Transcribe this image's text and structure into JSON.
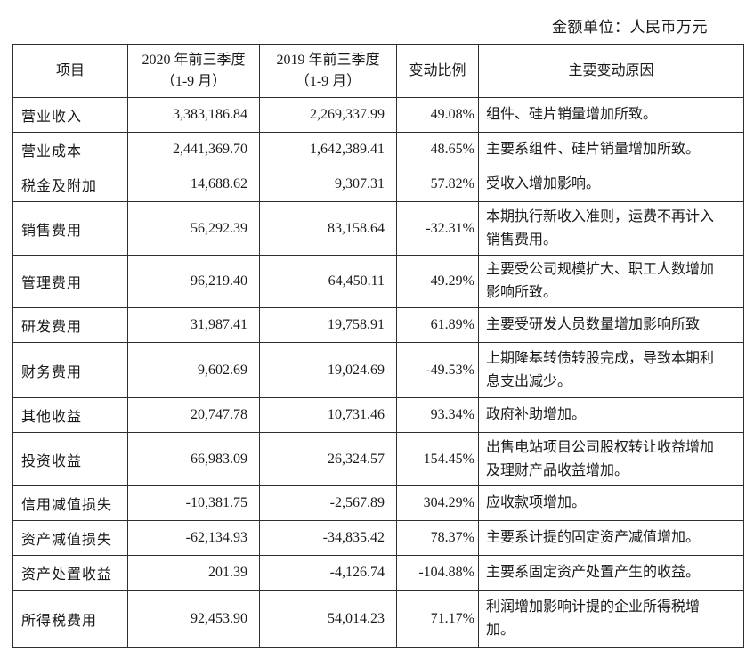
{
  "meta": {
    "unit_label": "金额单位：人民币万元"
  },
  "table": {
    "columns": [
      {
        "label": "项目"
      },
      {
        "line1": "2020 年前三季度",
        "line2": "（1-9 月）"
      },
      {
        "line1": "2019 年前三季度",
        "line2": "（1-9 月）"
      },
      {
        "label": "变动比例"
      },
      {
        "label": "主要变动原因"
      }
    ],
    "rows": [
      {
        "item": "营业收入",
        "v2020": "3,383,186.84",
        "v2019": "2,269,337.99",
        "change": "49.08%",
        "reason": "组件、硅片销量增加所致。"
      },
      {
        "item": "营业成本",
        "v2020": "2,441,369.70",
        "v2019": "1,642,389.41",
        "change": "48.65%",
        "reason": "主要系组件、硅片销量增加所致。"
      },
      {
        "item": "税金及附加",
        "v2020": "14,688.62",
        "v2019": "9,307.31",
        "change": "57.82%",
        "reason": "受收入增加影响。"
      },
      {
        "item": "销售费用",
        "v2020": "56,292.39",
        "v2019": "83,158.64",
        "change": "-32.31%",
        "reason": "本期执行新收入准则，运费不再计入销售费用。"
      },
      {
        "item": "管理费用",
        "v2020": "96,219.40",
        "v2019": "64,450.11",
        "change": "49.29%",
        "reason": "主要受公司规模扩大、职工人数增加影响所致。"
      },
      {
        "item": "研发费用",
        "v2020": "31,987.41",
        "v2019": "19,758.91",
        "change": "61.89%",
        "reason": "主要受研发人员数量增加影响所致"
      },
      {
        "item": "财务费用",
        "v2020": "9,602.69",
        "v2019": "19,024.69",
        "change": "-49.53%",
        "reason": "上期隆基转债转股完成，导致本期利息支出减少。"
      },
      {
        "item": "其他收益",
        "v2020": "20,747.78",
        "v2019": "10,731.46",
        "change": "93.34%",
        "reason": "政府补助增加。"
      },
      {
        "item": "投资收益",
        "v2020": "66,983.09",
        "v2019": "26,324.57",
        "change": "154.45%",
        "reason": "出售电站项目公司股权转让收益增加及理财产品收益增加。"
      },
      {
        "item": "信用减值损失",
        "v2020": "-10,381.75",
        "v2019": "-2,567.89",
        "change": "304.29%",
        "reason": "应收款项增加。"
      },
      {
        "item": "资产减值损失",
        "v2020": "-62,134.93",
        "v2019": "-34,835.42",
        "change": "78.37%",
        "reason": "主要系计提的固定资产减值增加。"
      },
      {
        "item": "资产处置收益",
        "v2020": "201.39",
        "v2019": "-4,126.74",
        "change": "-104.88%",
        "reason": "主要系固定资产处置产生的收益。"
      },
      {
        "item": "所得税费用",
        "v2020": "92,453.90",
        "v2019": "54,014.23",
        "change": "71.17%",
        "reason": "利润增加影响计提的企业所得税增加。"
      }
    ]
  }
}
